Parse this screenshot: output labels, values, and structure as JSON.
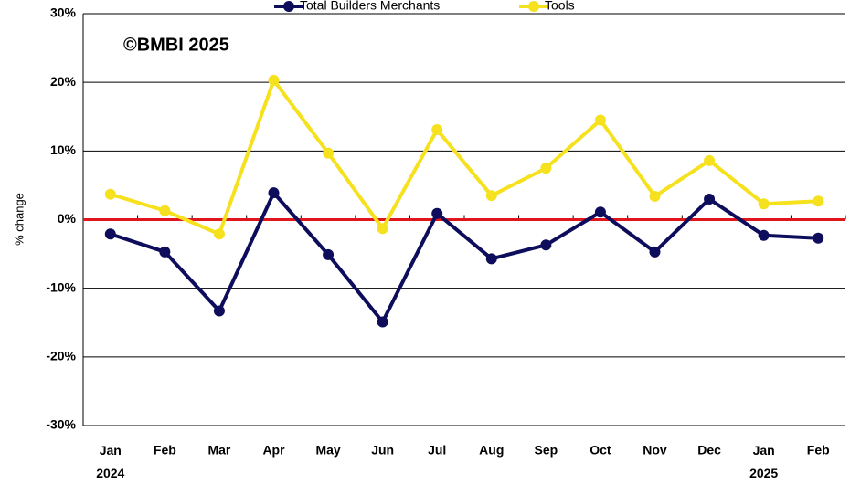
{
  "chart_data": {
    "type": "line",
    "annotation": "©BMBI 2025",
    "y_label": "% change",
    "categories": [
      "Jan 2024",
      "Feb",
      "Mar",
      "Apr",
      "May",
      "Jun",
      "Jul",
      "Aug",
      "Sep",
      "Oct",
      "Nov",
      "Dec",
      "Jan 2025",
      "Feb"
    ],
    "series": [
      {
        "name": "Total Builders Merchants",
        "color": "#0d0d5c",
        "values": [
          -2.1,
          -4.7,
          -13.3,
          3.9,
          -5.1,
          -14.9,
          0.9,
          -5.7,
          -3.7,
          1.1,
          -4.7,
          3.0,
          -2.3,
          -2.7
        ]
      },
      {
        "name": "Tools",
        "color": "#f5e11e",
        "values": [
          3.7,
          1.3,
          -2.1,
          20.3,
          9.7,
          -1.3,
          13.1,
          3.5,
          7.5,
          14.5,
          3.4,
          8.6,
          2.3,
          2.7
        ]
      }
    ],
    "ylim": [
      -30,
      30
    ],
    "yticks": [
      {
        "value": -30,
        "label": "-30%"
      },
      {
        "value": -20,
        "label": "-20%"
      },
      {
        "value": -10,
        "label": "-10%"
      },
      {
        "value": 0,
        "label": "0%"
      },
      {
        "value": 10,
        "label": "10%"
      },
      {
        "value": 20,
        "label": "20%"
      },
      {
        "value": 30,
        "label": "30%"
      }
    ],
    "grid": true
  }
}
